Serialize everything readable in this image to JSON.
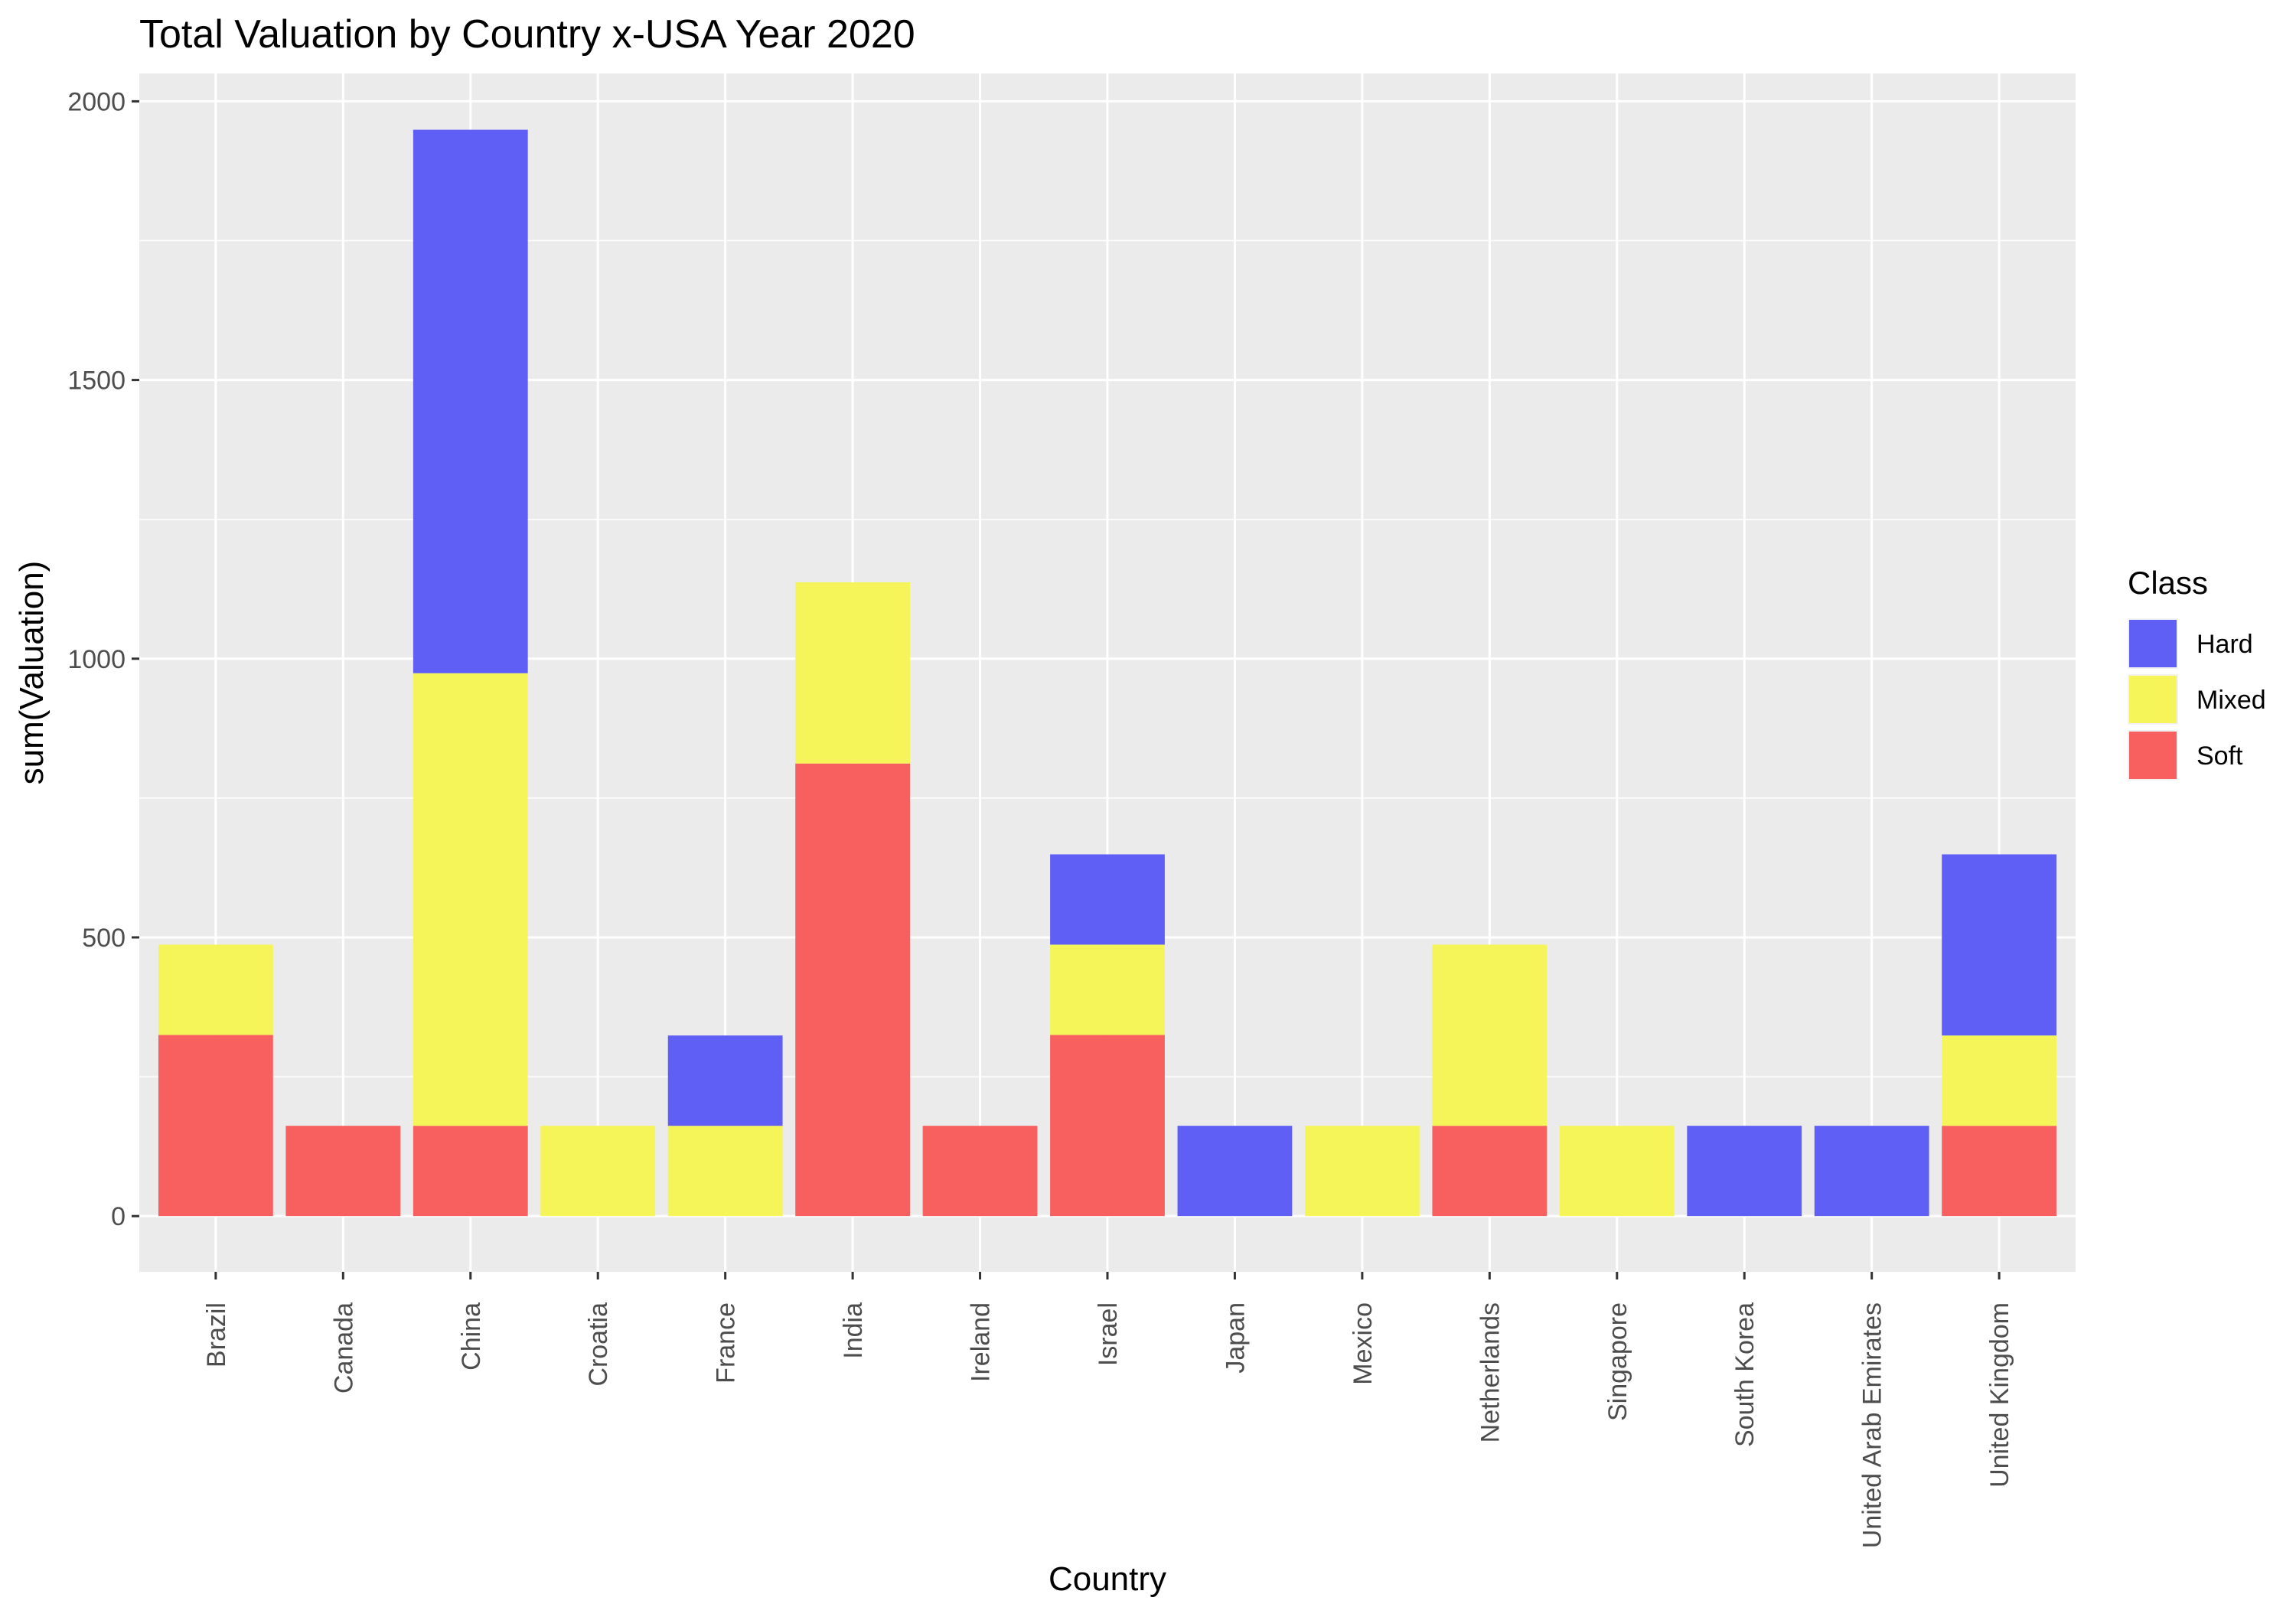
{
  "chart_data": {
    "type": "bar",
    "stacked": true,
    "title": "Total Valuation by Country x-USA Year 2020",
    "xlabel": "Country",
    "ylabel": "sum(Valuation)",
    "ylim": [
      -100,
      2050
    ],
    "yticks": [
      0,
      500,
      1000,
      1500,
      2000
    ],
    "grid": true,
    "legend_position": "right",
    "categories": [
      "Brazil",
      "Canada",
      "China",
      "Croatia",
      "France",
      "India",
      "Ireland",
      "Israel",
      "Japan",
      "Mexico",
      "Netherlands",
      "Singapore",
      "South Korea",
      "United Arab Emirates",
      "United Kingdom"
    ],
    "series": [
      {
        "name": "Soft",
        "color": "#f86060",
        "values": [
          325,
          162,
          162,
          0,
          0,
          812,
          162,
          325,
          0,
          0,
          162,
          0,
          0,
          0,
          162
        ]
      },
      {
        "name": "Mixed",
        "color": "#f5f55a",
        "values": [
          162,
          0,
          812,
          162,
          162,
          325,
          0,
          162,
          0,
          162,
          325,
          162,
          0,
          0,
          162
        ]
      },
      {
        "name": "Hard",
        "color": "#5f5ff5",
        "values": [
          0,
          0,
          975,
          0,
          162,
          0,
          0,
          162,
          162,
          0,
          0,
          0,
          162,
          162,
          325
        ]
      }
    ],
    "legend": {
      "title": "Class",
      "items": [
        {
          "name": "Hard",
          "color": "#5f5ff5"
        },
        {
          "name": "Mixed",
          "color": "#f5f55a"
        },
        {
          "name": "Soft",
          "color": "#f86060"
        }
      ]
    }
  }
}
